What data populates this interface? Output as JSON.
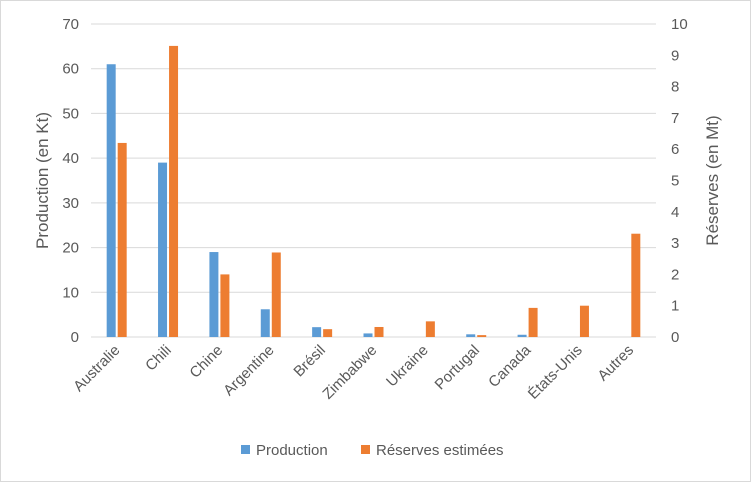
{
  "chart_data": {
    "type": "bar",
    "categories": [
      "Australie",
      "Chili",
      "Chine",
      "Argentine",
      "Brésil",
      "Zimbabwe",
      "Ukraine",
      "Portugal",
      "Canada",
      "États-Unis",
      "Autres"
    ],
    "series": [
      {
        "name": "Production",
        "axis": "left",
        "color": "#5b9bd5",
        "values": [
          61,
          39,
          19,
          6.2,
          2.2,
          0.8,
          0,
          0.6,
          0.5,
          0,
          0
        ]
      },
      {
        "name": "Réserves estimées",
        "axis": "right",
        "color": "#ed7d31",
        "values": [
          6.2,
          9.3,
          2.0,
          2.7,
          0.25,
          0.32,
          0.5,
          0.06,
          0.93,
          1.0,
          3.3
        ]
      }
    ],
    "ylabel": "Production (en Kt)",
    "y2label": "Réserves (en Mt)",
    "ylim": [
      0,
      70
    ],
    "y2lim": [
      0,
      10
    ],
    "yticks": [
      "0",
      "10",
      "20",
      "30",
      "40",
      "50",
      "60",
      "70"
    ],
    "y2ticks": [
      "0",
      "1",
      "2",
      "3",
      "4",
      "5",
      "6",
      "7",
      "8",
      "9",
      "10"
    ],
    "grid": true,
    "legend": "bottom"
  }
}
